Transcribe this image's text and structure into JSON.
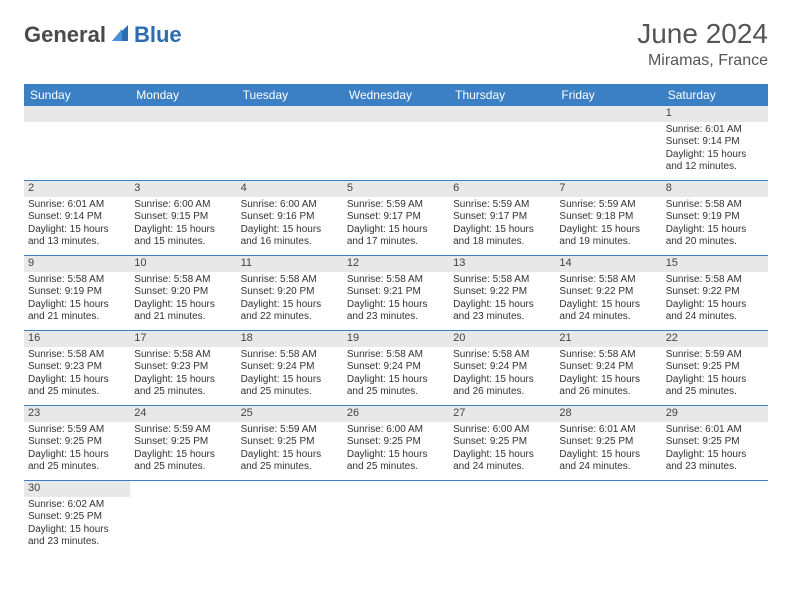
{
  "logo": {
    "part1": "General",
    "part2": "Blue"
  },
  "title": "June 2024",
  "location": "Miramas, France",
  "colors": {
    "header_bg": "#3b7fc4",
    "header_fg": "#ffffff",
    "daynum_bg": "#e8e8e8",
    "row_border": "#3b7fc4",
    "logo_gray": "#4a4a4a",
    "logo_blue": "#2a6db3"
  },
  "day_names": [
    "Sunday",
    "Monday",
    "Tuesday",
    "Wednesday",
    "Thursday",
    "Friday",
    "Saturday"
  ],
  "weeks": [
    [
      {
        "blank": true
      },
      {
        "blank": true
      },
      {
        "blank": true
      },
      {
        "blank": true
      },
      {
        "blank": true
      },
      {
        "blank": true
      },
      {
        "n": "1",
        "sunrise": "Sunrise: 6:01 AM",
        "sunset": "Sunset: 9:14 PM",
        "d1": "Daylight: 15 hours",
        "d2": "and 12 minutes."
      }
    ],
    [
      {
        "n": "2",
        "sunrise": "Sunrise: 6:01 AM",
        "sunset": "Sunset: 9:14 PM",
        "d1": "Daylight: 15 hours",
        "d2": "and 13 minutes."
      },
      {
        "n": "3",
        "sunrise": "Sunrise: 6:00 AM",
        "sunset": "Sunset: 9:15 PM",
        "d1": "Daylight: 15 hours",
        "d2": "and 15 minutes."
      },
      {
        "n": "4",
        "sunrise": "Sunrise: 6:00 AM",
        "sunset": "Sunset: 9:16 PM",
        "d1": "Daylight: 15 hours",
        "d2": "and 16 minutes."
      },
      {
        "n": "5",
        "sunrise": "Sunrise: 5:59 AM",
        "sunset": "Sunset: 9:17 PM",
        "d1": "Daylight: 15 hours",
        "d2": "and 17 minutes."
      },
      {
        "n": "6",
        "sunrise": "Sunrise: 5:59 AM",
        "sunset": "Sunset: 9:17 PM",
        "d1": "Daylight: 15 hours",
        "d2": "and 18 minutes."
      },
      {
        "n": "7",
        "sunrise": "Sunrise: 5:59 AM",
        "sunset": "Sunset: 9:18 PM",
        "d1": "Daylight: 15 hours",
        "d2": "and 19 minutes."
      },
      {
        "n": "8",
        "sunrise": "Sunrise: 5:58 AM",
        "sunset": "Sunset: 9:19 PM",
        "d1": "Daylight: 15 hours",
        "d2": "and 20 minutes."
      }
    ],
    [
      {
        "n": "9",
        "sunrise": "Sunrise: 5:58 AM",
        "sunset": "Sunset: 9:19 PM",
        "d1": "Daylight: 15 hours",
        "d2": "and 21 minutes."
      },
      {
        "n": "10",
        "sunrise": "Sunrise: 5:58 AM",
        "sunset": "Sunset: 9:20 PM",
        "d1": "Daylight: 15 hours",
        "d2": "and 21 minutes."
      },
      {
        "n": "11",
        "sunrise": "Sunrise: 5:58 AM",
        "sunset": "Sunset: 9:20 PM",
        "d1": "Daylight: 15 hours",
        "d2": "and 22 minutes."
      },
      {
        "n": "12",
        "sunrise": "Sunrise: 5:58 AM",
        "sunset": "Sunset: 9:21 PM",
        "d1": "Daylight: 15 hours",
        "d2": "and 23 minutes."
      },
      {
        "n": "13",
        "sunrise": "Sunrise: 5:58 AM",
        "sunset": "Sunset: 9:22 PM",
        "d1": "Daylight: 15 hours",
        "d2": "and 23 minutes."
      },
      {
        "n": "14",
        "sunrise": "Sunrise: 5:58 AM",
        "sunset": "Sunset: 9:22 PM",
        "d1": "Daylight: 15 hours",
        "d2": "and 24 minutes."
      },
      {
        "n": "15",
        "sunrise": "Sunrise: 5:58 AM",
        "sunset": "Sunset: 9:22 PM",
        "d1": "Daylight: 15 hours",
        "d2": "and 24 minutes."
      }
    ],
    [
      {
        "n": "16",
        "sunrise": "Sunrise: 5:58 AM",
        "sunset": "Sunset: 9:23 PM",
        "d1": "Daylight: 15 hours",
        "d2": "and 25 minutes."
      },
      {
        "n": "17",
        "sunrise": "Sunrise: 5:58 AM",
        "sunset": "Sunset: 9:23 PM",
        "d1": "Daylight: 15 hours",
        "d2": "and 25 minutes."
      },
      {
        "n": "18",
        "sunrise": "Sunrise: 5:58 AM",
        "sunset": "Sunset: 9:24 PM",
        "d1": "Daylight: 15 hours",
        "d2": "and 25 minutes."
      },
      {
        "n": "19",
        "sunrise": "Sunrise: 5:58 AM",
        "sunset": "Sunset: 9:24 PM",
        "d1": "Daylight: 15 hours",
        "d2": "and 25 minutes."
      },
      {
        "n": "20",
        "sunrise": "Sunrise: 5:58 AM",
        "sunset": "Sunset: 9:24 PM",
        "d1": "Daylight: 15 hours",
        "d2": "and 26 minutes."
      },
      {
        "n": "21",
        "sunrise": "Sunrise: 5:58 AM",
        "sunset": "Sunset: 9:24 PM",
        "d1": "Daylight: 15 hours",
        "d2": "and 26 minutes."
      },
      {
        "n": "22",
        "sunrise": "Sunrise: 5:59 AM",
        "sunset": "Sunset: 9:25 PM",
        "d1": "Daylight: 15 hours",
        "d2": "and 25 minutes."
      }
    ],
    [
      {
        "n": "23",
        "sunrise": "Sunrise: 5:59 AM",
        "sunset": "Sunset: 9:25 PM",
        "d1": "Daylight: 15 hours",
        "d2": "and 25 minutes."
      },
      {
        "n": "24",
        "sunrise": "Sunrise: 5:59 AM",
        "sunset": "Sunset: 9:25 PM",
        "d1": "Daylight: 15 hours",
        "d2": "and 25 minutes."
      },
      {
        "n": "25",
        "sunrise": "Sunrise: 5:59 AM",
        "sunset": "Sunset: 9:25 PM",
        "d1": "Daylight: 15 hours",
        "d2": "and 25 minutes."
      },
      {
        "n": "26",
        "sunrise": "Sunrise: 6:00 AM",
        "sunset": "Sunset: 9:25 PM",
        "d1": "Daylight: 15 hours",
        "d2": "and 25 minutes."
      },
      {
        "n": "27",
        "sunrise": "Sunrise: 6:00 AM",
        "sunset": "Sunset: 9:25 PM",
        "d1": "Daylight: 15 hours",
        "d2": "and 24 minutes."
      },
      {
        "n": "28",
        "sunrise": "Sunrise: 6:01 AM",
        "sunset": "Sunset: 9:25 PM",
        "d1": "Daylight: 15 hours",
        "d2": "and 24 minutes."
      },
      {
        "n": "29",
        "sunrise": "Sunrise: 6:01 AM",
        "sunset": "Sunset: 9:25 PM",
        "d1": "Daylight: 15 hours",
        "d2": "and 23 minutes."
      }
    ],
    [
      {
        "n": "30",
        "sunrise": "Sunrise: 6:02 AM",
        "sunset": "Sunset: 9:25 PM",
        "d1": "Daylight: 15 hours",
        "d2": "and 23 minutes."
      },
      {
        "blank": true
      },
      {
        "blank": true
      },
      {
        "blank": true
      },
      {
        "blank": true
      },
      {
        "blank": true
      },
      {
        "blank": true
      }
    ]
  ]
}
